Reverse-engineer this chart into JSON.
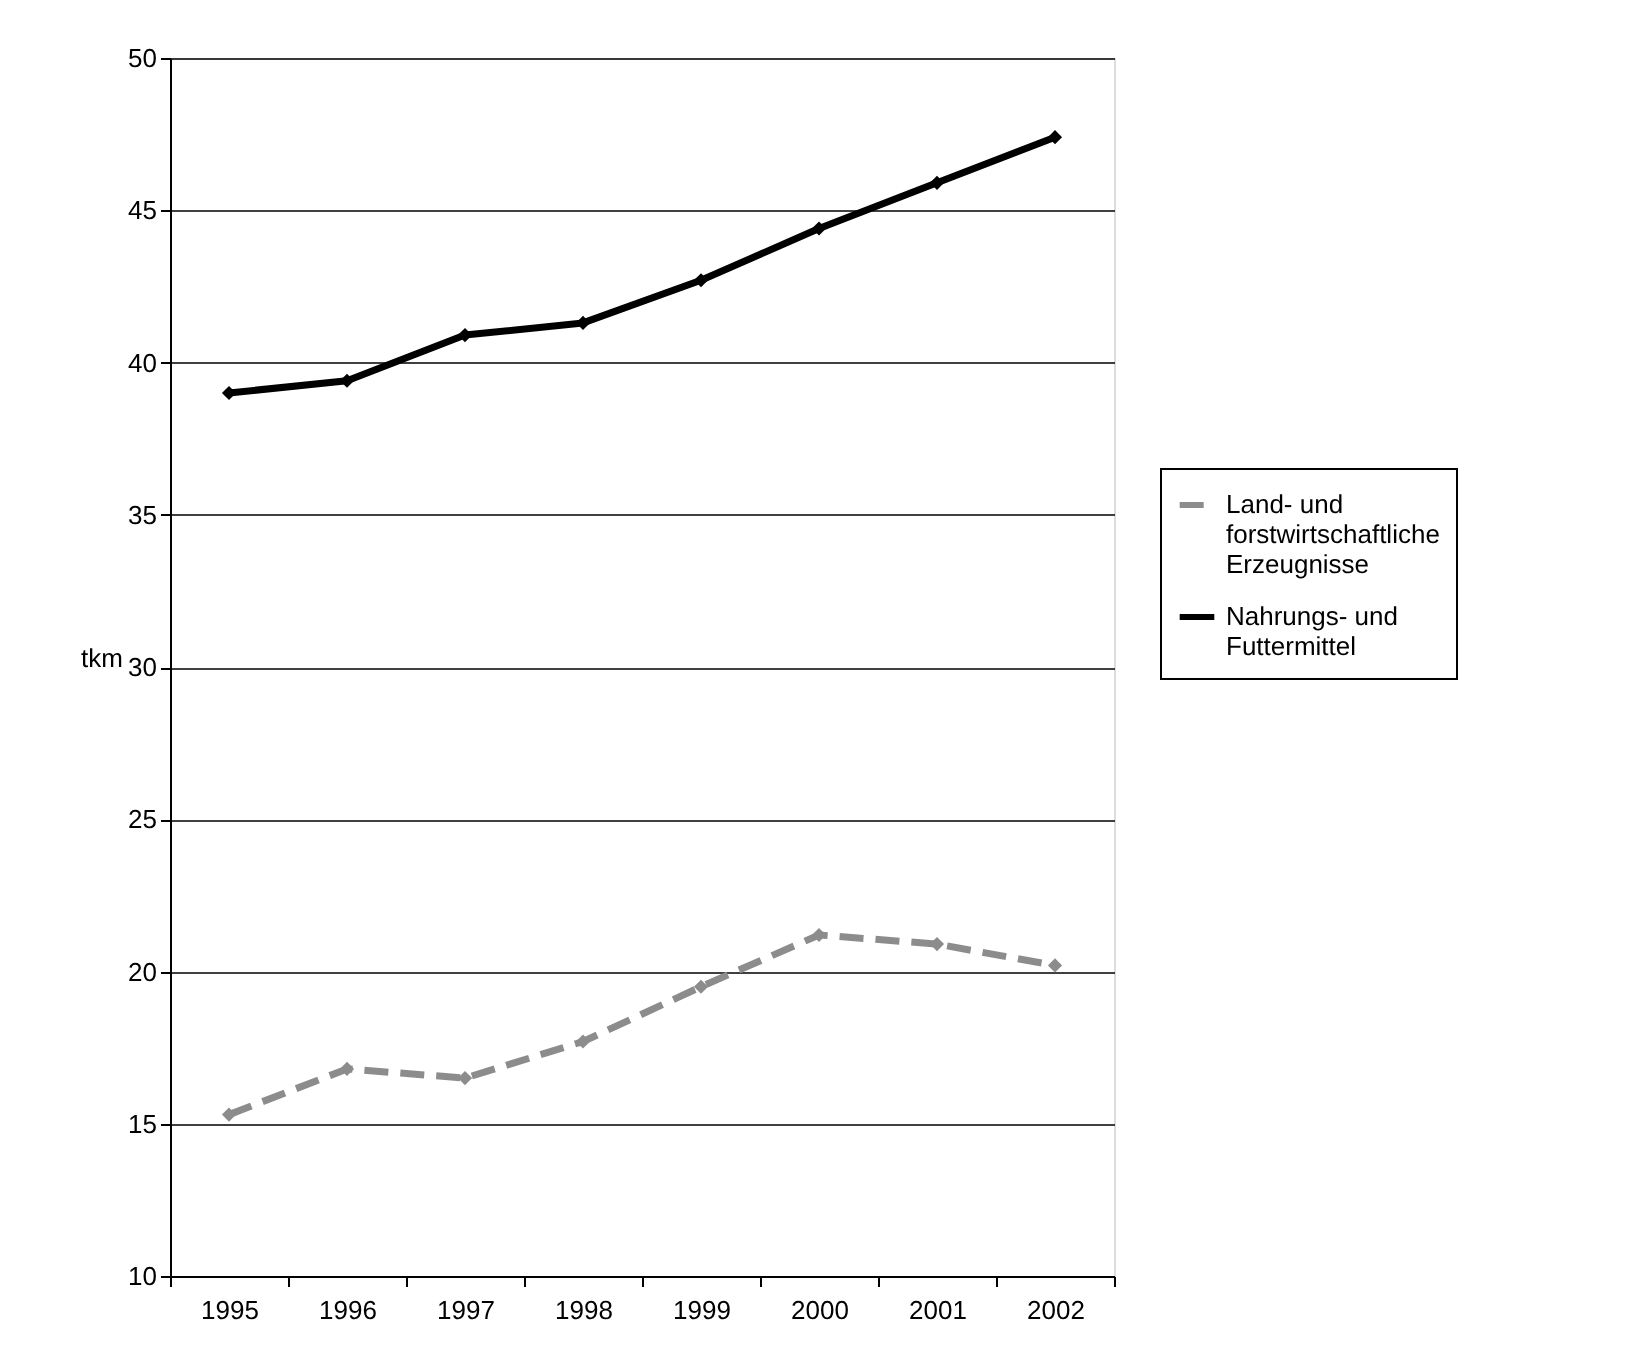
{
  "chart_data": {
    "type": "line",
    "categories": [
      "1995",
      "1996",
      "1997",
      "1998",
      "1999",
      "2000",
      "2001",
      "2002"
    ],
    "ylabel": "tkm",
    "ylim": [
      10,
      50
    ],
    "yticks": [
      10,
      15,
      20,
      25,
      30,
      35,
      40,
      45,
      50
    ],
    "grid": "y",
    "legend": "right",
    "marker": "diamond",
    "series": [
      {
        "name": "Land- und forstwirtschaftliche Erzeugnisse",
        "color": "#8c8c8c",
        "line_style": "dashed",
        "values": [
          15.3,
          16.8,
          16.5,
          17.7,
          19.5,
          21.2,
          20.9,
          20.2
        ]
      },
      {
        "name": "Nahrungs- und Futtermittel",
        "color": "#000000",
        "line_style": "solid",
        "values": [
          39.0,
          39.4,
          40.9,
          41.3,
          42.7,
          44.4,
          45.9,
          47.4
        ]
      }
    ]
  }
}
